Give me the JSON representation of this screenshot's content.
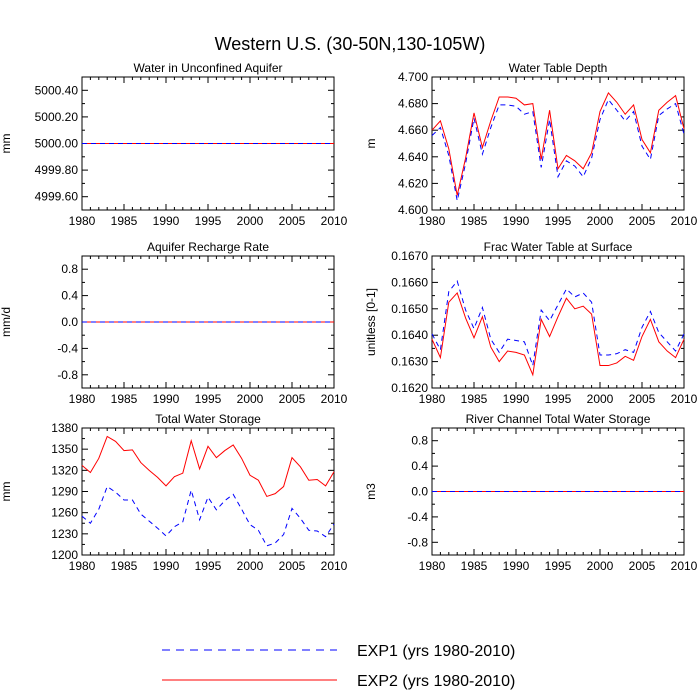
{
  "figure": {
    "title": "Western U.S. (30-50N,130-105W)"
  },
  "legend": [
    {
      "name": "EXP1 (yrs 1980-2010)",
      "color": "#0000ff",
      "dash": "dashed"
    },
    {
      "name": "EXP2 (yrs 1980-2010)",
      "color": "#ff0000",
      "dash": "solid"
    }
  ],
  "chart_data": [
    {
      "type": "line",
      "title": "Water in Unconfined Aquifer",
      "xlabel": "",
      "ylabel": "mm",
      "xlim": [
        1980,
        2010
      ],
      "ylim": [
        4999.5,
        5000.5
      ],
      "xticks": [
        1980,
        1985,
        1990,
        1995,
        2000,
        2005,
        2010
      ],
      "yticks": [
        4999.6,
        4999.8,
        5000.0,
        5000.2,
        5000.4
      ],
      "ytick_labels": [
        "4999.60",
        "4999.80",
        "5000.00",
        "5000.20",
        "5000.40"
      ],
      "x": [
        1980,
        2010
      ],
      "series": [
        {
          "name": "EXP1 (yrs 1980-2010)",
          "values": [
            5000.0,
            5000.0
          ]
        },
        {
          "name": "EXP2 (yrs 1980-2010)",
          "values": [
            5000.0,
            5000.0
          ]
        }
      ]
    },
    {
      "type": "line",
      "title": "Water Table Depth",
      "xlabel": "",
      "ylabel": "m",
      "xlim": [
        1980,
        2010
      ],
      "ylim": [
        4.6,
        4.7
      ],
      "xticks": [
        1980,
        1985,
        1990,
        1995,
        2000,
        2005,
        2010
      ],
      "yticks": [
        4.6,
        4.62,
        4.64,
        4.66,
        4.68,
        4.7
      ],
      "ytick_labels": [
        "4.600",
        "4.620",
        "4.640",
        "4.660",
        "4.680",
        "4.700"
      ],
      "x": [
        1980,
        1981,
        1982,
        1983,
        1984,
        1985,
        1986,
        1987,
        1988,
        1989,
        1990,
        1991,
        1992,
        1993,
        1994,
        1995,
        1996,
        1997,
        1998,
        1999,
        2000,
        2001,
        2002,
        2003,
        2004,
        2005,
        2006,
        2007,
        2008,
        2009,
        2010
      ],
      "series": [
        {
          "name": "EXP1 (yrs 1980-2010)",
          "values": [
            4.656,
            4.662,
            4.641,
            4.607,
            4.635,
            4.669,
            4.642,
            4.662,
            4.679,
            4.679,
            4.678,
            4.672,
            4.674,
            4.632,
            4.668,
            4.625,
            4.637,
            4.633,
            4.625,
            4.639,
            4.668,
            4.683,
            4.675,
            4.667,
            4.674,
            4.648,
            4.638,
            4.671,
            4.676,
            4.68,
            4.657
          ]
        },
        {
          "name": "EXP2 (yrs 1980-2010)",
          "values": [
            4.66,
            4.667,
            4.646,
            4.611,
            4.639,
            4.673,
            4.647,
            4.667,
            4.685,
            4.685,
            4.684,
            4.679,
            4.68,
            4.638,
            4.675,
            4.631,
            4.641,
            4.637,
            4.631,
            4.643,
            4.674,
            4.688,
            4.681,
            4.672,
            4.679,
            4.653,
            4.643,
            4.675,
            4.681,
            4.686,
            4.661
          ]
        }
      ]
    },
    {
      "type": "line",
      "title": "Aquifer Recharge Rate",
      "xlabel": "",
      "ylabel": "mm/d",
      "xlim": [
        1980,
        2010
      ],
      "ylim": [
        -1.0,
        1.0
      ],
      "xticks": [
        1980,
        1985,
        1990,
        1995,
        2000,
        2005,
        2010
      ],
      "yticks": [
        -0.8,
        -0.4,
        0.0,
        0.4,
        0.8
      ],
      "ytick_labels": [
        "-0.8",
        "-0.4",
        "0.0",
        "0.4",
        "0.8"
      ],
      "x": [
        1980,
        2010
      ],
      "series": [
        {
          "name": "EXP1 (yrs 1980-2010)",
          "values": [
            0.0,
            0.0
          ]
        },
        {
          "name": "EXP2 (yrs 1980-2010)",
          "values": [
            0.0,
            0.0
          ]
        }
      ]
    },
    {
      "type": "line",
      "title": "Frac Water Table at Surface",
      "xlabel": "",
      "ylabel": "unitless [0-1]",
      "xlim": [
        1980,
        2010
      ],
      "ylim": [
        0.162,
        0.167
      ],
      "xticks": [
        1980,
        1985,
        1990,
        1995,
        2000,
        2005,
        2010
      ],
      "yticks": [
        0.162,
        0.163,
        0.164,
        0.165,
        0.166,
        0.167
      ],
      "ytick_labels": [
        "0.1620",
        "0.1630",
        "0.1640",
        "0.1650",
        "0.1660",
        "0.1670"
      ],
      "x": [
        1980,
        1981,
        1982,
        1983,
        1984,
        1985,
        1986,
        1987,
        1988,
        1989,
        1990,
        1991,
        1992,
        1993,
        1994,
        1995,
        1996,
        1997,
        1998,
        1999,
        2000,
        2001,
        2002,
        2003,
        2004,
        2005,
        2006,
        2007,
        2008,
        2009,
        2010
      ],
      "series": [
        {
          "name": "EXP1 (yrs 1980-2010)",
          "values": [
            0.16405,
            0.16345,
            0.16565,
            0.16605,
            0.16495,
            0.16425,
            0.16505,
            0.16385,
            0.16335,
            0.16385,
            0.1638,
            0.16375,
            0.16285,
            0.16495,
            0.16455,
            0.16515,
            0.16575,
            0.16545,
            0.1656,
            0.16525,
            0.16325,
            0.16325,
            0.1633,
            0.16345,
            0.16335,
            0.1643,
            0.1649,
            0.1641,
            0.16375,
            0.1634,
            0.16405
          ]
        },
        {
          "name": "EXP2 (yrs 1980-2010)",
          "values": [
            0.16385,
            0.16315,
            0.16525,
            0.1656,
            0.16465,
            0.1639,
            0.1647,
            0.16355,
            0.163,
            0.1634,
            0.16335,
            0.16325,
            0.1625,
            0.1646,
            0.16395,
            0.1647,
            0.1654,
            0.165,
            0.1651,
            0.1648,
            0.16285,
            0.16285,
            0.16295,
            0.1632,
            0.16305,
            0.16395,
            0.1646,
            0.16375,
            0.1634,
            0.16315,
            0.16385
          ]
        }
      ]
    },
    {
      "type": "line",
      "title": "Total Water Storage",
      "xlabel": "",
      "ylabel": "mm",
      "xlim": [
        1980,
        2010
      ],
      "ylim": [
        1200,
        1380
      ],
      "xticks": [
        1980,
        1985,
        1990,
        1995,
        2000,
        2005,
        2010
      ],
      "yticks": [
        1200,
        1230,
        1260,
        1290,
        1320,
        1350,
        1380
      ],
      "ytick_labels": [
        "1200",
        "1230",
        "1260",
        "1290",
        "1320",
        "1350",
        "1380"
      ],
      "x": [
        1980,
        1981,
        1982,
        1983,
        1984,
        1985,
        1986,
        1987,
        1988,
        1989,
        1990,
        1991,
        1992,
        1993,
        1994,
        1995,
        1996,
        1997,
        1998,
        1999,
        2000,
        2001,
        2002,
        2003,
        2004,
        2005,
        2006,
        2007,
        2008,
        2009,
        2010
      ],
      "series": [
        {
          "name": "EXP1 (yrs 1980-2010)",
          "values": [
            1255,
            1245,
            1265,
            1297,
            1289,
            1278,
            1278,
            1258,
            1248,
            1238,
            1227,
            1240,
            1247,
            1292,
            1250,
            1282,
            1264,
            1277,
            1286,
            1265,
            1243,
            1235,
            1213,
            1217,
            1229,
            1266,
            1252,
            1235,
            1234,
            1226,
            1244
          ]
        },
        {
          "name": "EXP2 (yrs 1980-2010)",
          "values": [
            1327,
            1317,
            1337,
            1368,
            1361,
            1348,
            1349,
            1331,
            1320,
            1310,
            1298,
            1311,
            1316,
            1362,
            1322,
            1354,
            1338,
            1348,
            1356,
            1337,
            1313,
            1306,
            1283,
            1287,
            1297,
            1338,
            1325,
            1306,
            1307,
            1298,
            1318
          ]
        }
      ]
    },
    {
      "type": "line",
      "title": "River Channel Total Water Storage",
      "xlabel": "",
      "ylabel": "m3",
      "xlim": [
        1980,
        2010
      ],
      "ylim": [
        -1.0,
        1.0
      ],
      "xticks": [
        1980,
        1985,
        1990,
        1995,
        2000,
        2005,
        2010
      ],
      "yticks": [
        -0.8,
        -0.4,
        0.0,
        0.4,
        0.8
      ],
      "ytick_labels": [
        "-0.8",
        "-0.4",
        "0.0",
        "0.4",
        "0.8"
      ],
      "x": [
        1980,
        2010
      ],
      "series": [
        {
          "name": "EXP1 (yrs 1980-2010)",
          "values": [
            0.0,
            0.0
          ]
        },
        {
          "name": "EXP2 (yrs 1980-2010)",
          "values": [
            0.0,
            0.0
          ]
        }
      ]
    }
  ]
}
